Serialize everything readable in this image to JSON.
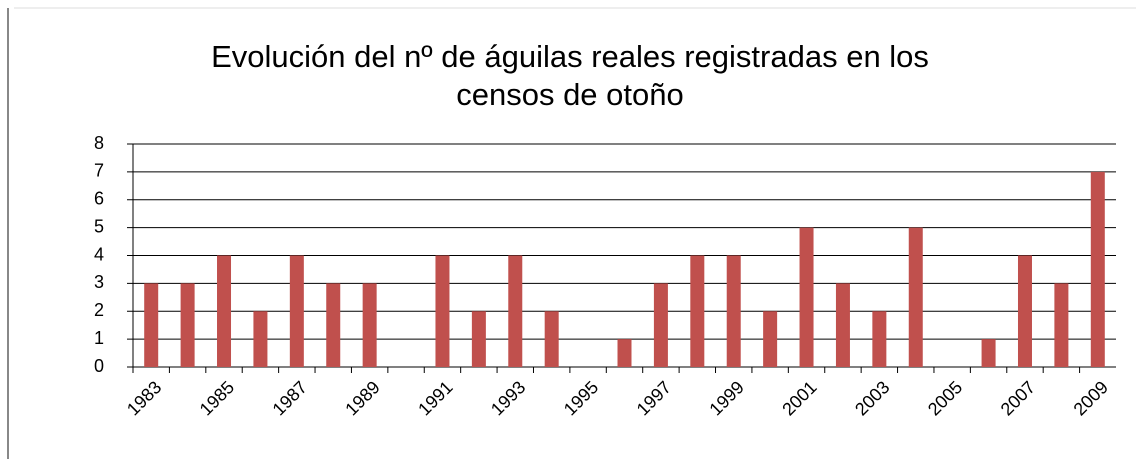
{
  "chart_data": {
    "type": "bar",
    "title": "Evolución del nº de águilas reales registradas en los censos de otoño",
    "categories": [
      "1983",
      null,
      "1985",
      null,
      "1987",
      null,
      "1989",
      null,
      "1991",
      null,
      "1993",
      null,
      "1995",
      null,
      "1997",
      null,
      "1999",
      null,
      "2001",
      null,
      "2003",
      null,
      "2005",
      null,
      "2007",
      null,
      "2009"
    ],
    "values": [
      3,
      3,
      4,
      2,
      4,
      3,
      3,
      0,
      4,
      2,
      4,
      2,
      0,
      1,
      3,
      4,
      4,
      2,
      5,
      3,
      2,
      5,
      0,
      1,
      4,
      3,
      7
    ],
    "color": "#c0504d",
    "ylim": [
      0,
      8
    ],
    "yticks": [
      0,
      1,
      2,
      3,
      4,
      5,
      6,
      7,
      8
    ],
    "grid": true
  }
}
